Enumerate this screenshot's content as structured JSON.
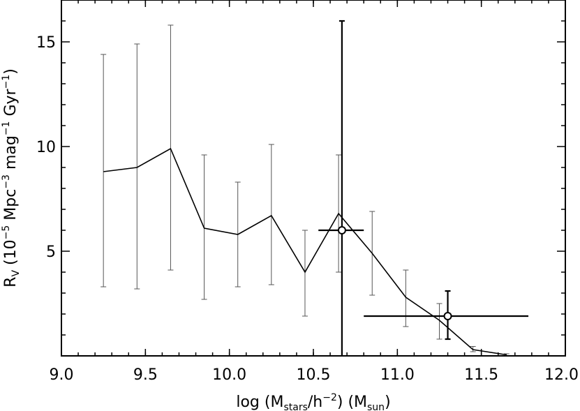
{
  "chart_data": {
    "type": "line",
    "title": "",
    "xlabel": {
      "main": "log (M",
      "sub": "stars",
      "mid": "/h",
      "sup": "−2",
      "end": ") (M",
      "sub2": "sun",
      "close": ")"
    },
    "ylabel": {
      "main": "R",
      "sub": "V",
      "p1": " (10",
      "sup1": "−5",
      "p2": " Mpc",
      "sup2": "−3",
      "p3": " mag",
      "sup3": "−1",
      "p4": " Gyr",
      "sup4": "−1",
      "p5": ")"
    },
    "xlim": [
      9.0,
      12.0
    ],
    "ylim": [
      0,
      17
    ],
    "xticks": [
      9.0,
      9.5,
      10.0,
      10.5,
      11.0,
      11.5,
      12.0
    ],
    "xtick_labels": [
      "9.0",
      "9.5",
      "10.0",
      "10.5",
      "11.0",
      "11.5",
      "12.0"
    ],
    "yticks": [
      5,
      10,
      15
    ],
    "ytick_labels": [
      "5",
      "10",
      "15"
    ],
    "model": {
      "x": [
        9.25,
        9.45,
        9.65,
        9.85,
        10.05,
        10.25,
        10.45,
        10.65,
        10.85,
        11.05,
        11.25,
        11.45,
        11.65
      ],
      "y": [
        8.8,
        9.0,
        9.9,
        6.1,
        5.8,
        6.7,
        4.0,
        6.8,
        4.9,
        2.8,
        1.7,
        0.3,
        0.05
      ],
      "err_low": [
        3.3,
        3.2,
        4.1,
        2.7,
        3.3,
        3.4,
        1.9,
        4.0,
        2.9,
        1.4,
        0.8,
        0.2,
        0.0
      ],
      "err_high": [
        14.4,
        14.9,
        15.8,
        9.6,
        8.3,
        10.1,
        6.0,
        9.6,
        6.9,
        4.1,
        2.5,
        0.45,
        0.1
      ]
    },
    "observed": [
      {
        "x": 10.67,
        "y": 6.0,
        "xerr_low": 10.53,
        "xerr_high": 10.8,
        "yerr_low": 0,
        "yerr_high": 16.0
      },
      {
        "x": 11.3,
        "y": 1.9,
        "xerr_low": 10.8,
        "xerr_high": 11.78,
        "yerr_low": 0.8,
        "yerr_high": 3.1
      }
    ],
    "grid": false,
    "legend": "none"
  }
}
